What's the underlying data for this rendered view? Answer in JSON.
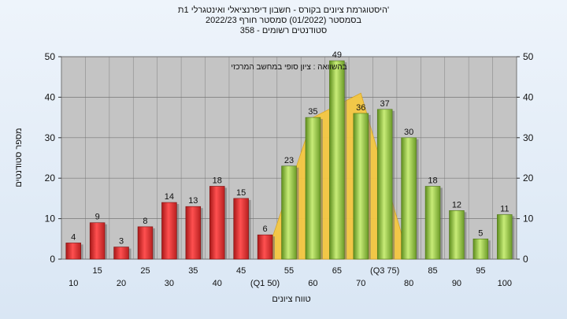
{
  "title": {
    "line1": "'היסטוגרמת ציונים בקורס - חשבון דיפרנציאלי ואינטגרלי 1ת",
    "line2": "בסמסטר  (01/2022)  סמסטר חורף  2022/23",
    "line3": "סטודנטים רשומים - 358"
  },
  "chart_data": {
    "type": "bar",
    "title": "'היסטוגרמת ציונים בקורס - חשבון דיפרנציאלי ואינטגרלי 1ת",
    "xlabel": "טווח ציונים",
    "ylabel": "מספר סטודנטים",
    "annotation": "בהשוואה : ציון סופי במחשב המרכזי",
    "categories": [
      "10",
      "15",
      "20",
      "25",
      "30",
      "35",
      "40",
      "45",
      "(Q1 50)",
      "55",
      "60",
      "65",
      "70",
      "(Q3 75)",
      "80",
      "85",
      "90",
      "95",
      "100"
    ],
    "values": [
      4,
      9,
      3,
      8,
      14,
      13,
      18,
      15,
      6,
      23,
      35,
      49,
      36,
      37,
      30,
      18,
      12,
      5,
      11
    ],
    "value_labels": [
      "4",
      "9",
      "3",
      "8",
      "14",
      "13",
      "18",
      "15",
      "6",
      "23",
      "35",
      "49",
      "36",
      "37",
      "30",
      "18",
      "12",
      "5",
      "11"
    ],
    "bar_colors": [
      "#e03030",
      "#e03030",
      "#e03030",
      "#e03030",
      "#e03030",
      "#e03030",
      "#e03030",
      "#e03030",
      "#e03030",
      "#8fc040",
      "#8fc040",
      "#8fc040",
      "#8fc040",
      "#8fc040",
      "#8fc040",
      "#8fc040",
      "#8fc040",
      "#8fc040",
      "#8fc040"
    ],
    "comparison_area": {
      "color": "#f5c842",
      "x": [
        "(Q1 50)",
        "60",
        "70",
        "80"
      ],
      "y": [
        0,
        35,
        41,
        0
      ]
    },
    "ylim": [
      0,
      50
    ],
    "yticks": [
      0,
      10,
      20,
      30,
      40,
      50
    ],
    "grid": true,
    "colors": {
      "plot_bg": "#c4c4c4",
      "low": "#e03030",
      "high": "#8fc040",
      "area": "#f5c842"
    }
  }
}
